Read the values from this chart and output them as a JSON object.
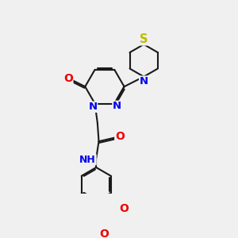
{
  "bg_color": "#f0f0f0",
  "bond_color": "#1a1a1a",
  "bond_width": 1.5,
  "dbo": 0.055,
  "atom_colors": {
    "N": "#0000ee",
    "O": "#ee0000",
    "S": "#bbbb00",
    "C": "#1a1a1a"
  },
  "font_size": 8.5,
  "fig_size": [
    3.0,
    3.0
  ],
  "dpi": 100
}
